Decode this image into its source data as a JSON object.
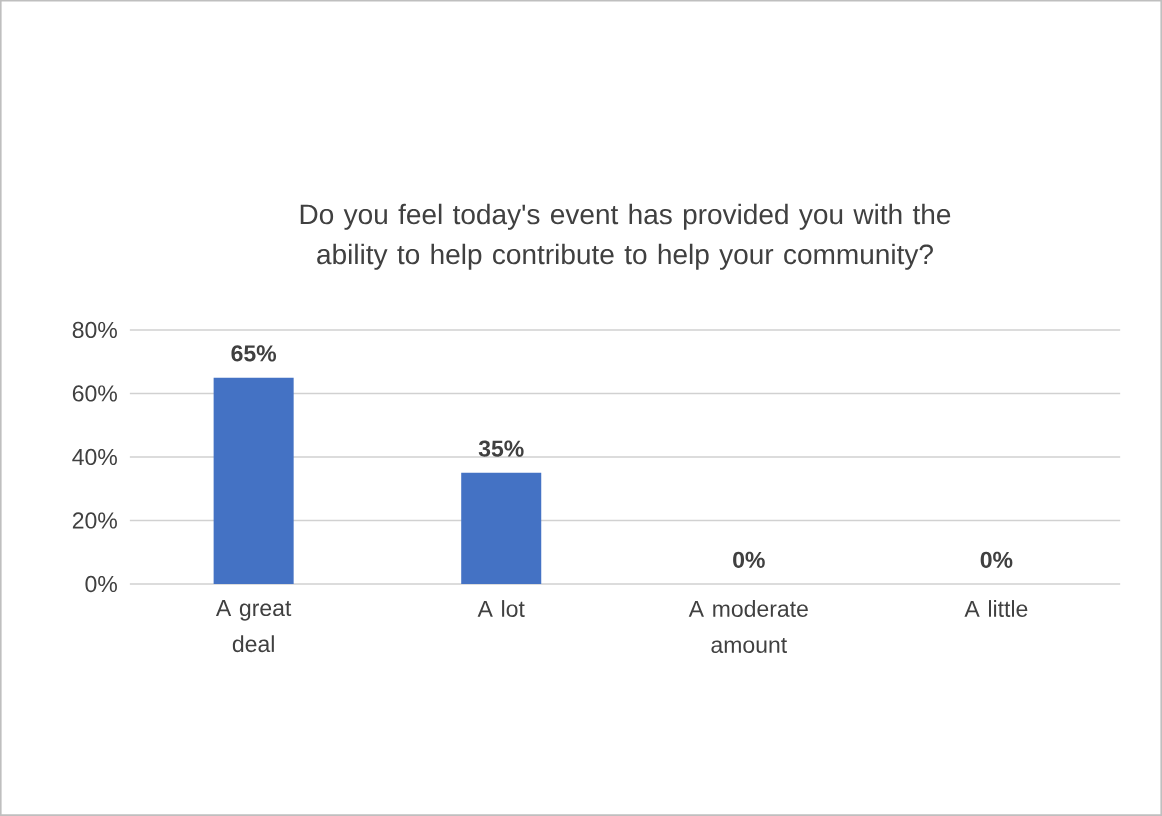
{
  "chart_data": {
    "type": "bar",
    "title": "Do you feel today's event has provided you with the ability to help contribute to help your community?",
    "categories": [
      "A great deal",
      "A lot",
      "A moderate amount",
      "A little"
    ],
    "values": [
      65,
      35,
      0,
      0
    ],
    "color": "#4472c4",
    "value_labels": [
      "65%",
      "35%",
      "0%",
      "0%"
    ],
    "ylim": [
      0,
      80
    ],
    "yticks": [
      {
        "value": 0,
        "label": "0%"
      },
      {
        "value": 20,
        "label": "20%"
      },
      {
        "value": 40,
        "label": "40%"
      },
      {
        "value": 60,
        "label": "60%"
      },
      {
        "value": 80,
        "label": "80%"
      }
    ],
    "grid": "y"
  }
}
